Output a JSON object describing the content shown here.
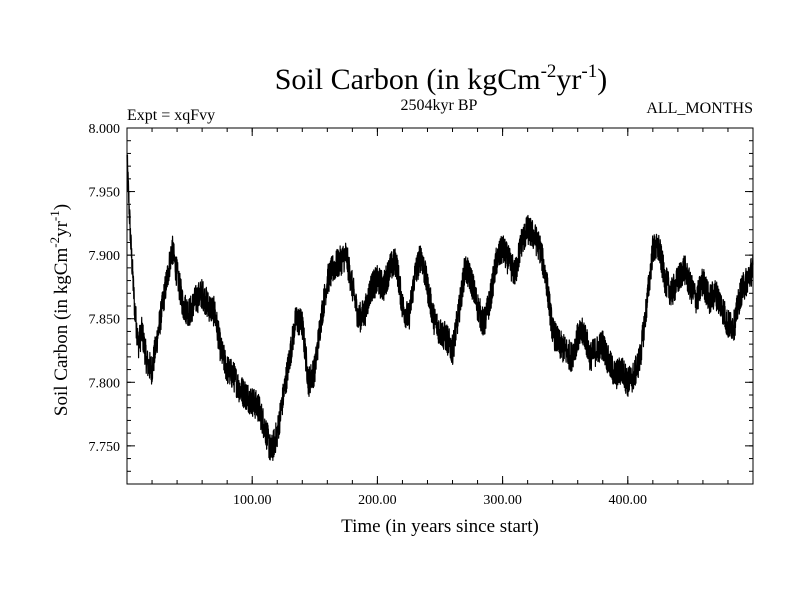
{
  "chart_data": {
    "type": "line",
    "title_main": "Soil Carbon (in kgCm",
    "title_sup1": "-2",
    "title_mid": "yr",
    "title_sup2": "-1",
    "title_end": ")",
    "subtitle_left": "Expt = xqFvy",
    "subtitle_center": "2504kyr BP",
    "subtitle_right": "ALL_MONTHS",
    "xlabel": "Time (in years since start)",
    "ylabel_main": "Soil Carbon (in kgCm",
    "ylabel_sup1": "-2",
    "ylabel_mid": "yr",
    "ylabel_sup2": "-1",
    "ylabel_end": ")",
    "xlim": [
      0,
      500
    ],
    "ylim": [
      7.72,
      8.0
    ],
    "xticks": [
      100,
      200,
      300,
      400
    ],
    "xtick_labels": [
      "100.00",
      "200.00",
      "300.00",
      "400.00"
    ],
    "yticks": [
      7.75,
      7.8,
      7.85,
      7.9,
      7.95,
      8.0
    ],
    "ytick_labels": [
      "7.750",
      "7.800",
      "7.850",
      "7.900",
      "7.950",
      "8.000"
    ],
    "series": [
      {
        "name": "Soil Carbon",
        "color": "#000000",
        "noise": 0.012,
        "x": [
          0,
          3,
          6,
          9,
          12,
          16,
          20,
          25,
          30,
          36,
          40,
          45,
          50,
          55,
          60,
          65,
          70,
          75,
          80,
          85,
          90,
          95,
          100,
          105,
          110,
          115,
          120,
          125,
          130,
          135,
          140,
          145,
          150,
          155,
          160,
          165,
          170,
          175,
          180,
          185,
          190,
          195,
          200,
          205,
          210,
          215,
          220,
          225,
          230,
          235,
          240,
          245,
          250,
          255,
          260,
          265,
          270,
          275,
          280,
          285,
          290,
          295,
          300,
          305,
          310,
          315,
          320,
          325,
          330,
          335,
          340,
          345,
          350,
          355,
          360,
          365,
          370,
          375,
          380,
          385,
          390,
          395,
          400,
          405,
          410,
          415,
          420,
          425,
          430,
          435,
          440,
          445,
          450,
          455,
          460,
          465,
          470,
          475,
          480,
          485,
          490,
          495,
          500
        ],
        "y": [
          7.975,
          7.91,
          7.86,
          7.83,
          7.84,
          7.815,
          7.81,
          7.84,
          7.87,
          7.905,
          7.885,
          7.86,
          7.855,
          7.865,
          7.87,
          7.86,
          7.855,
          7.825,
          7.81,
          7.805,
          7.795,
          7.79,
          7.785,
          7.78,
          7.765,
          7.745,
          7.76,
          7.79,
          7.82,
          7.85,
          7.845,
          7.8,
          7.81,
          7.85,
          7.88,
          7.89,
          7.895,
          7.9,
          7.875,
          7.85,
          7.855,
          7.875,
          7.88,
          7.875,
          7.89,
          7.895,
          7.86,
          7.85,
          7.885,
          7.9,
          7.875,
          7.85,
          7.84,
          7.835,
          7.825,
          7.855,
          7.89,
          7.88,
          7.86,
          7.845,
          7.865,
          7.895,
          7.905,
          7.895,
          7.885,
          7.91,
          7.92,
          7.915,
          7.905,
          7.88,
          7.84,
          7.83,
          7.825,
          7.82,
          7.835,
          7.84,
          7.82,
          7.825,
          7.83,
          7.815,
          7.805,
          7.81,
          7.8,
          7.805,
          7.82,
          7.86,
          7.905,
          7.905,
          7.88,
          7.87,
          7.88,
          7.89,
          7.875,
          7.865,
          7.88,
          7.865,
          7.87,
          7.86,
          7.845,
          7.845,
          7.87,
          7.88,
          7.89
        ]
      }
    ]
  }
}
